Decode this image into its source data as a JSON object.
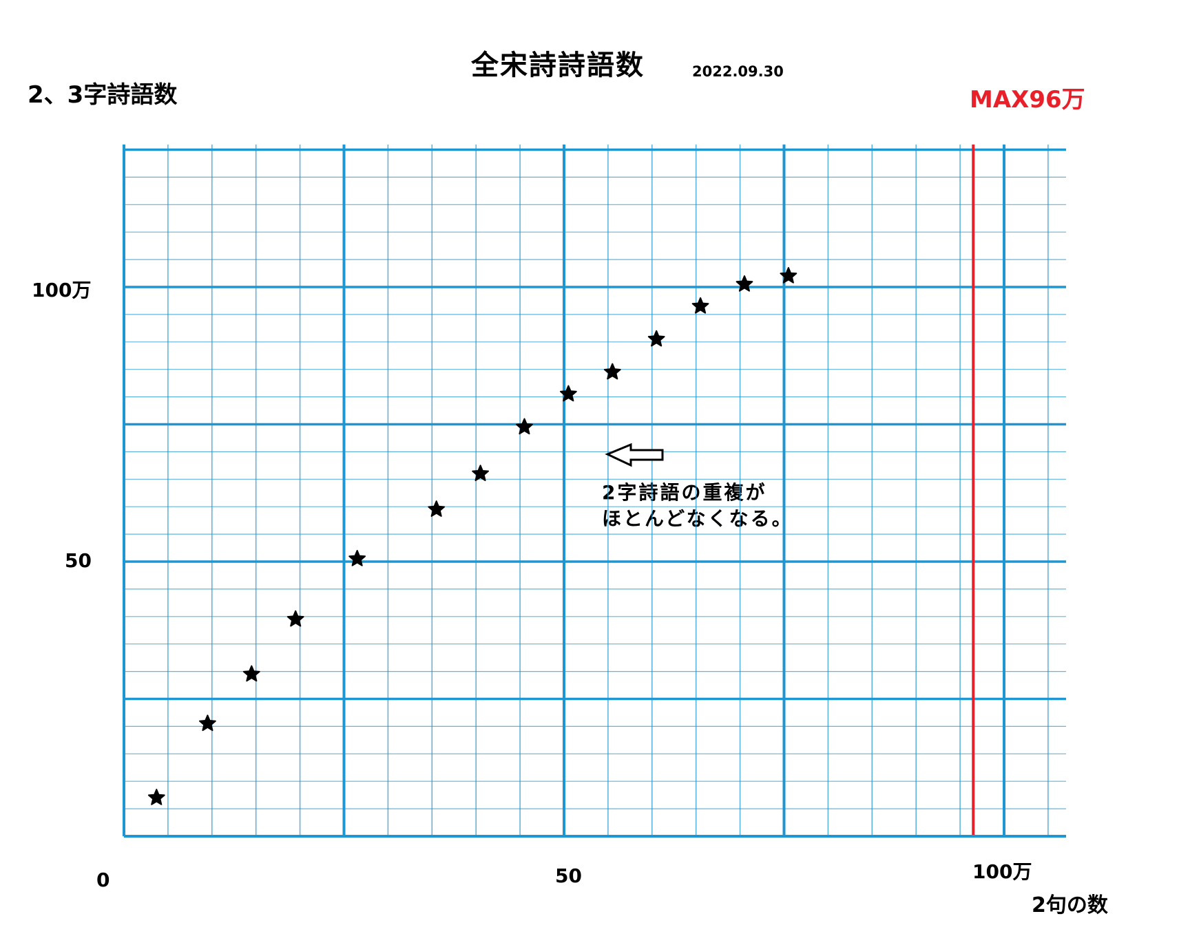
{
  "chart_data": {
    "type": "scatter",
    "title": "全宋詩詩語数",
    "subtitle": "2022.09.30",
    "ylabel": "2、3字詩語数",
    "xlabel": "2句の数",
    "xlim": [
      0,
      107
    ],
    "ylim": [
      0,
      125
    ],
    "x_ticks": [
      {
        "value": 0,
        "label": "0"
      },
      {
        "value": 50,
        "label": "50"
      },
      {
        "value": 100,
        "label": "100万"
      }
    ],
    "y_ticks": [
      {
        "value": 50,
        "label": "50"
      },
      {
        "value": 100,
        "label": "100万"
      }
    ],
    "grid": true,
    "marker": "star",
    "series": [
      {
        "x": [
          3.7,
          9.5,
          14.5,
          19.5,
          26.5,
          35.5,
          40.5,
          45.5,
          50.5,
          55.5,
          60.5,
          65.5,
          70.5,
          75.5
        ],
        "y": [
          7,
          20.5,
          29.5,
          39.5,
          50.5,
          59.5,
          66,
          74.5,
          80.5,
          84.5,
          90.5,
          96.5,
          100.5,
          102
        ]
      }
    ],
    "reference_line": {
      "x": 96.5,
      "label": "MAX96万",
      "color": "#e8202a"
    },
    "annotation": {
      "lines": [
        "2字詩語の重複が",
        "ほとんどなくなる。"
      ],
      "arrow_direction": "left"
    }
  }
}
